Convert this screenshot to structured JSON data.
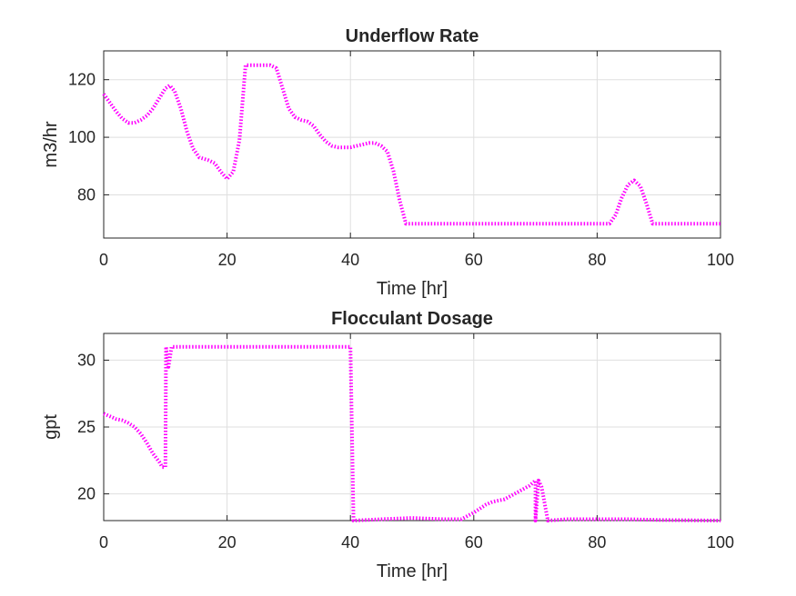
{
  "chart_data": [
    {
      "type": "line",
      "title": "Underflow Rate",
      "xlabel": "Time [hr]",
      "ylabel": "m3/hr",
      "xlim": [
        0,
        100
      ],
      "ylim": [
        65,
        130
      ],
      "xticks": [
        0,
        20,
        40,
        60,
        80,
        100
      ],
      "yticks": [
        80,
        100,
        120
      ],
      "grid": true,
      "series": [
        {
          "color": "#ff00ff",
          "x": [
            0,
            1,
            2,
            3,
            4,
            5,
            6,
            7,
            8,
            9,
            10,
            10.7,
            11.5,
            12.5,
            13.5,
            14.5,
            15.5,
            17,
            18,
            19,
            20,
            21,
            22,
            23,
            27,
            28,
            29,
            30,
            31,
            32,
            33,
            34,
            35,
            36,
            37,
            38,
            39,
            40,
            41,
            42,
            43,
            44,
            45,
            46,
            47,
            48,
            49,
            82,
            83,
            84,
            85,
            86,
            87,
            88,
            89,
            100
          ],
          "y": [
            115,
            112,
            109,
            106.5,
            105,
            105,
            106,
            107.5,
            110,
            113.5,
            117,
            118,
            116,
            110,
            102,
            96,
            93,
            92,
            91,
            88,
            85.5,
            88,
            99,
            125,
            125,
            124,
            117,
            110,
            107,
            106,
            105.5,
            104,
            101,
            98.5,
            97,
            96.5,
            96.5,
            96.5,
            97,
            97.5,
            98,
            98,
            97,
            95,
            88,
            78,
            70,
            70,
            73,
            79,
            83.5,
            85,
            83,
            77,
            70,
            70
          ]
        }
      ]
    },
    {
      "type": "line",
      "title": "Flocculant Dosage",
      "xlabel": "Time [hr]",
      "ylabel": "gpt",
      "xlim": [
        0,
        100
      ],
      "ylim": [
        18,
        32
      ],
      "xticks": [
        0,
        20,
        40,
        60,
        80,
        100
      ],
      "yticks": [
        20,
        25,
        30
      ],
      "grid": true,
      "series": [
        {
          "color": "#ff00ff",
          "x": [
            0,
            1,
            2,
            3,
            4,
            5,
            6,
            7,
            8,
            9,
            9.5,
            10,
            10.1,
            10.5,
            11,
            39.8,
            40,
            40.5,
            45,
            50,
            55,
            58,
            60,
            62,
            63,
            65,
            67,
            69,
            70,
            70,
            70.5,
            71,
            72,
            75,
            80,
            85,
            90,
            100
          ],
          "y": [
            26,
            25.8,
            25.6,
            25.5,
            25.3,
            25,
            24.5,
            23.8,
            23,
            22.4,
            22,
            22,
            31,
            29.5,
            31,
            31,
            31,
            18,
            18.1,
            18.2,
            18.1,
            18.1,
            18.6,
            19.2,
            19.4,
            19.6,
            20.1,
            20.6,
            21,
            18,
            21,
            20.5,
            18,
            18.1,
            18.1,
            18.1,
            18.05,
            18
          ]
        }
      ]
    }
  ]
}
